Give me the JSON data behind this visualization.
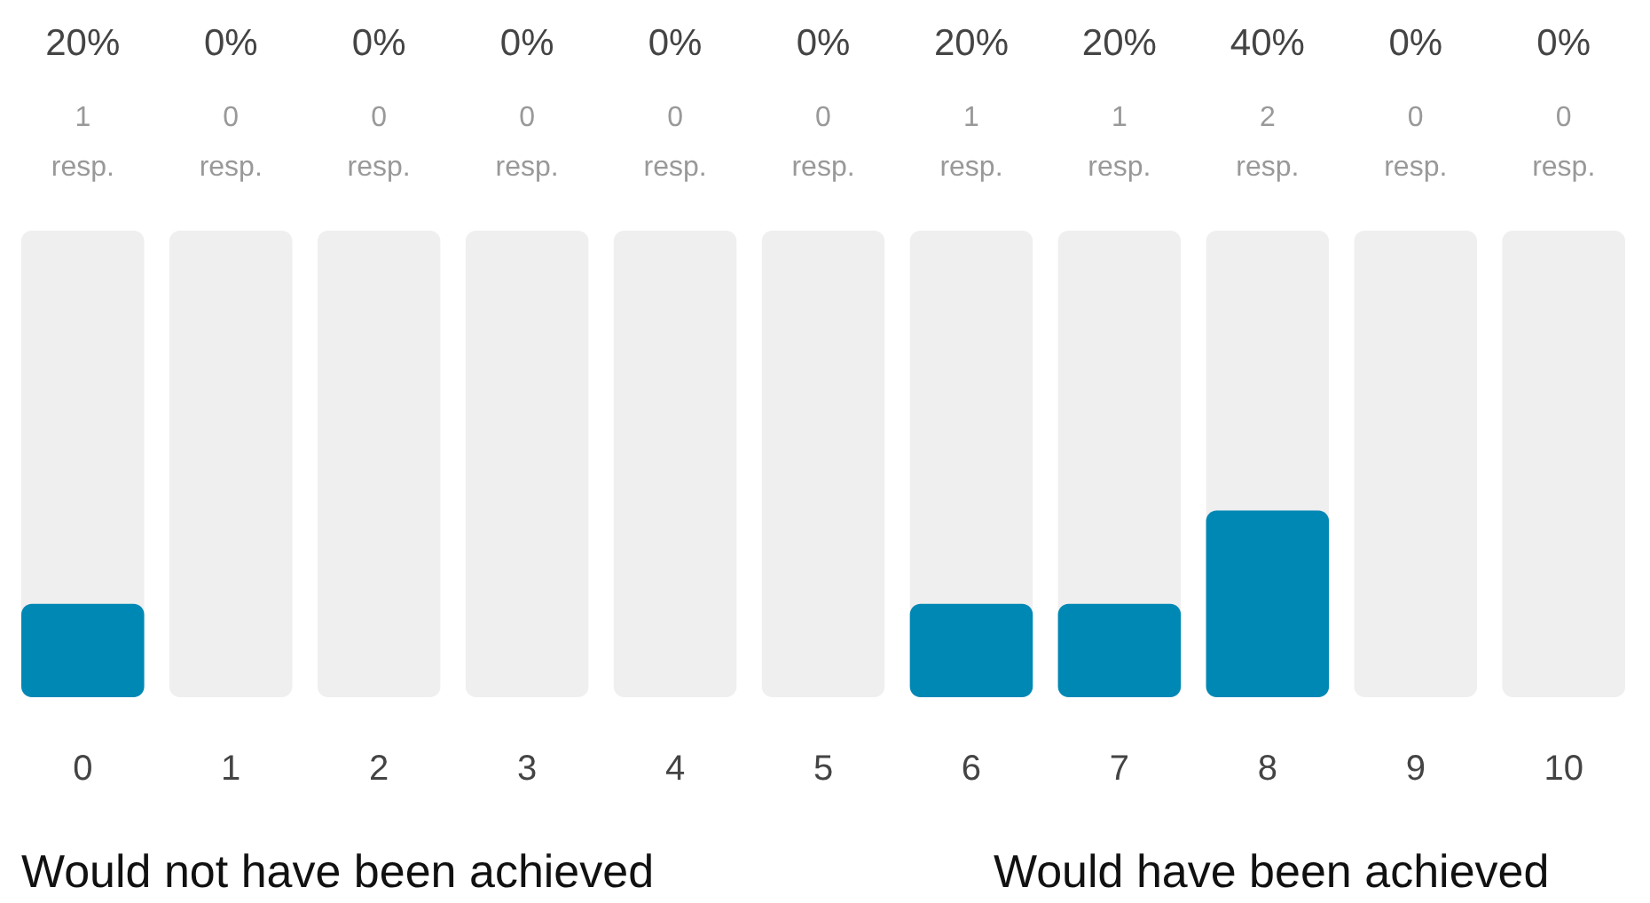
{
  "chart_data": {
    "type": "bar",
    "categories": [
      "0",
      "1",
      "2",
      "3",
      "4",
      "5",
      "6",
      "7",
      "8",
      "9",
      "10"
    ],
    "values": [
      20,
      0,
      0,
      0,
      0,
      0,
      20,
      20,
      40,
      0,
      0
    ],
    "color": "#0088b5",
    "value_labels": [
      "20%",
      "0%",
      "0%",
      "0%",
      "0%",
      "0%",
      "20%",
      "20%",
      "40%",
      "0%",
      "0%"
    ],
    "ylim": [
      0,
      100
    ],
    "tick_labels": "x",
    "bands": [
      {
        "axis": "x",
        "from": "0",
        "to": "0",
        "color": "#efefef"
      },
      {
        "axis": "x",
        "from": "1",
        "to": "1",
        "color": "#efefef"
      },
      {
        "axis": "x",
        "from": "2",
        "to": "2",
        "color": "#efefef"
      },
      {
        "axis": "x",
        "from": "3",
        "to": "3",
        "color": "#efefef"
      },
      {
        "axis": "x",
        "from": "4",
        "to": "4",
        "color": "#efefef"
      },
      {
        "axis": "x",
        "from": "5",
        "to": "5",
        "color": "#efefef"
      },
      {
        "axis": "x",
        "from": "6",
        "to": "6",
        "color": "#efefef"
      },
      {
        "axis": "x",
        "from": "7",
        "to": "7",
        "color": "#efefef"
      },
      {
        "axis": "x",
        "from": "8",
        "to": "8",
        "color": "#efefef"
      },
      {
        "axis": "x",
        "from": "9",
        "to": "9",
        "color": "#efefef"
      },
      {
        "axis": "x",
        "from": "10",
        "to": "10",
        "color": "#efefef"
      }
    ],
    "annotations": [
      "1 resp.",
      "0 resp.",
      "0 resp.",
      "0 resp.",
      "0 resp.",
      "0 resp.",
      "1 resp.",
      "1 resp.",
      "2 resp.",
      "0 resp.",
      "0 resp.",
      "Would not have been achieved",
      "Would have been achieved"
    ]
  }
}
